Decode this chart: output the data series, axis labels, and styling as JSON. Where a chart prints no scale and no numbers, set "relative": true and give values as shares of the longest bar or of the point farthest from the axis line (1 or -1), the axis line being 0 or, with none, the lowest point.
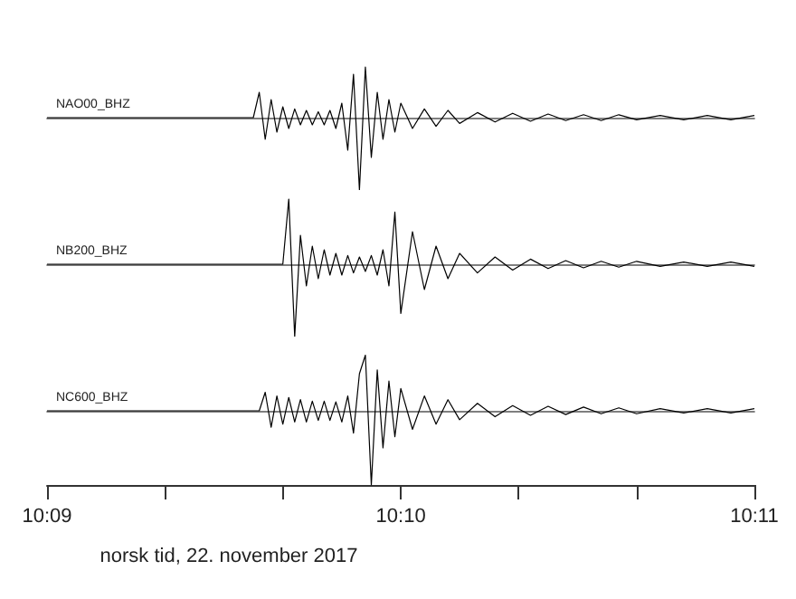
{
  "chart_data": [
    {
      "type": "line",
      "tick_labels": false,
      "relative": true,
      "xlim": [
        10.15,
        10.18333
      ],
      "x": [
        10.15,
        10.15972,
        10.16,
        10.16028,
        10.16056,
        10.16083,
        10.16111,
        10.16139,
        10.16167,
        10.16194,
        10.16222,
        10.1625,
        10.16278,
        10.16306,
        10.16333,
        10.16361,
        10.16389,
        10.16417,
        10.16444,
        10.16472,
        10.165,
        10.16528,
        10.16556,
        10.16583,
        10.16611,
        10.16639,
        10.16667,
        10.16722,
        10.16778,
        10.16833,
        10.16889,
        10.16944,
        10.17028,
        10.17111,
        10.17194,
        10.17278,
        10.17361,
        10.17444,
        10.17528,
        10.17611,
        10.17694,
        10.17778,
        10.17889,
        10.18,
        10.18111,
        10.18222,
        10.18333
      ],
      "series": [
        {
          "name": "NAO00_BHZ",
          "color": "#000000",
          "values": [
            0,
            0,
            0.35,
            -0.3,
            0.25,
            -0.2,
            0.15,
            -0.15,
            0.12,
            -0.1,
            0.1,
            -0.1,
            0.08,
            -0.1,
            0.1,
            -0.15,
            0.2,
            -0.45,
            0.6,
            -1,
            0.7,
            -0.55,
            0.35,
            -0.3,
            0.25,
            -0.2,
            0.2,
            -0.15,
            0.12,
            -0.12,
            0.1,
            -0.08,
            0.07,
            -0.06,
            0.06,
            -0.05,
            0.05,
            -0.04,
            0.04,
            -0.04,
            0.04,
            -0.03,
            0.03,
            -0.03,
            0.03,
            -0.03,
            0.03
          ]
        }
      ]
    },
    {
      "type": "line",
      "tick_labels": false,
      "relative": true,
      "xlim": [
        10.15,
        10.18333
      ],
      "x": [
        10.15,
        10.15972,
        10.16,
        10.16028,
        10.16056,
        10.16083,
        10.16111,
        10.16139,
        10.16167,
        10.16194,
        10.16222,
        10.1625,
        10.16278,
        10.16306,
        10.16333,
        10.16361,
        10.16389,
        10.16417,
        10.16444,
        10.16472,
        10.165,
        10.16528,
        10.16556,
        10.16583,
        10.16611,
        10.16639,
        10.16667,
        10.16722,
        10.16778,
        10.16833,
        10.16889,
        10.16944,
        10.17028,
        10.17111,
        10.17194,
        10.17278,
        10.17361,
        10.17444,
        10.17528,
        10.17611,
        10.17694,
        10.17778,
        10.17889,
        10.18,
        10.18111,
        10.18222,
        10.18333
      ],
      "series": [
        {
          "name": "NB200_BHZ",
          "color": "#000000",
          "values": [
            0,
            0,
            0,
            0,
            0,
            0,
            0,
            0.9,
            -1,
            0.4,
            -0.3,
            0.25,
            -0.2,
            0.2,
            -0.15,
            0.15,
            -0.15,
            0.12,
            -0.12,
            0.1,
            -0.1,
            0.12,
            -0.15,
            0.2,
            -0.3,
            0.72,
            -0.68,
            0.45,
            -0.35,
            0.25,
            -0.2,
            0.15,
            -0.12,
            0.1,
            -0.08,
            0.07,
            -0.06,
            0.05,
            -0.05,
            0.04,
            -0.04,
            0.04,
            -0.03,
            0.03,
            -0.03,
            0.03,
            -0.03
          ]
        }
      ]
    },
    {
      "type": "line",
      "tick_labels": "x",
      "relative": true,
      "xlim": [
        10.15,
        10.18333
      ],
      "xticks": [
        {
          "value": 10.15,
          "label": "10:09"
        },
        {
          "value": 10.15556,
          "label": null
        },
        {
          "value": 10.16111,
          "label": null
        },
        {
          "value": 10.16667,
          "label": "10:10"
        },
        {
          "value": 10.17222,
          "label": null
        },
        {
          "value": 10.17778,
          "label": null
        },
        {
          "value": 10.18333,
          "label": "10:11"
        }
      ],
      "xlabel": "norsk tid, 22. november 2017",
      "x": [
        10.15,
        10.15972,
        10.16,
        10.16028,
        10.16056,
        10.16083,
        10.16111,
        10.16139,
        10.16167,
        10.16194,
        10.16222,
        10.1625,
        10.16278,
        10.16306,
        10.16333,
        10.16361,
        10.16389,
        10.16417,
        10.16444,
        10.16472,
        10.165,
        10.16528,
        10.16556,
        10.16583,
        10.16611,
        10.16639,
        10.16667,
        10.16722,
        10.16778,
        10.16833,
        10.16889,
        10.16944,
        10.17028,
        10.17111,
        10.17194,
        10.17278,
        10.17361,
        10.17444,
        10.17528,
        10.17611,
        10.17694,
        10.17778,
        10.17889,
        10.18,
        10.18111,
        10.18222,
        10.18333
      ],
      "series": [
        {
          "name": "NC600_BHZ",
          "color": "#000000",
          "values": [
            0,
            0,
            0,
            0.25,
            -0.22,
            0.2,
            -0.18,
            0.18,
            -0.15,
            0.15,
            -0.15,
            0.13,
            -0.13,
            0.13,
            -0.13,
            0.12,
            -0.15,
            0.2,
            -0.3,
            0.5,
            0.75,
            -1,
            0.55,
            -0.5,
            0.4,
            -0.35,
            0.3,
            -0.25,
            0.2,
            -0.18,
            0.15,
            -0.12,
            0.1,
            -0.08,
            0.07,
            -0.06,
            0.06,
            -0.05,
            0.05,
            -0.04,
            0.04,
            -0.04,
            0.03,
            -0.03,
            0.03,
            -0.03,
            0.03
          ]
        }
      ]
    }
  ]
}
